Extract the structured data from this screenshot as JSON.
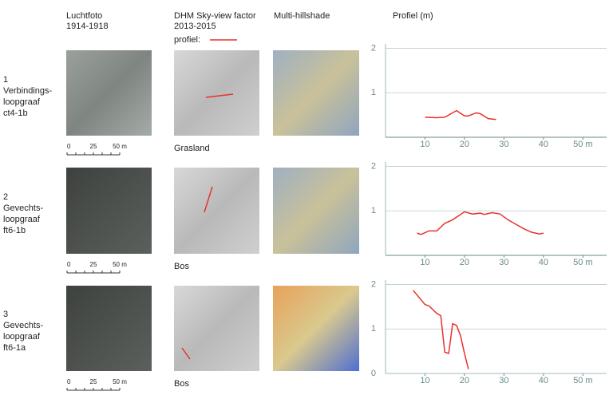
{
  "columns": [
    [
      "Luchtfoto",
      "1914-1918"
    ],
    [
      "DHM Sky-view factor",
      "2013-2015"
    ],
    [
      "Multi-hillshade"
    ],
    [
      "Profiel (m)"
    ]
  ],
  "profile_legend": "profiel:",
  "rows": [
    {
      "label": [
        "1",
        "Verbindings-",
        "loopgraaf",
        "ct4-1b"
      ],
      "landuse": "Grasland",
      "scale": [
        "0",
        "25",
        "50 m"
      ]
    },
    {
      "label": [
        "2",
        "Gevechts-",
        "loopgraaf",
        "ft6-1b"
      ],
      "landuse": "Bos",
      "scale": [
        "0",
        "25",
        "50 m"
      ]
    },
    {
      "label": [
        "3",
        "Gevechts-",
        "loopgraaf",
        "ft6-1a"
      ],
      "landuse": "Bos",
      "scale": [
        "0",
        "25",
        "50 m"
      ]
    }
  ],
  "chart_data": [
    {
      "type": "line",
      "color": "#e8322b",
      "x": [
        10,
        13,
        15,
        18,
        20,
        21,
        23,
        24,
        26,
        28
      ],
      "values": [
        0.45,
        0.44,
        0.45,
        0.6,
        0.48,
        0.48,
        0.55,
        0.53,
        0.42,
        0.4
      ],
      "xlim": [
        0,
        56
      ],
      "ylim": [
        0,
        2.1
      ],
      "xticks": [
        10,
        20,
        30,
        40,
        {
          "value": 50,
          "label": "50 m"
        }
      ],
      "yticks": [
        1,
        2
      ],
      "grid": true
    },
    {
      "type": "line",
      "color": "#e8322b",
      "x": [
        8,
        9,
        11,
        13,
        15,
        17,
        20,
        22,
        24,
        25,
        27,
        29,
        31,
        33,
        35,
        37,
        39,
        40
      ],
      "values": [
        0.5,
        0.47,
        0.55,
        0.55,
        0.72,
        0.8,
        0.98,
        0.93,
        0.95,
        0.92,
        0.96,
        0.93,
        0.8,
        0.7,
        0.6,
        0.52,
        0.48,
        0.5
      ],
      "xlim": [
        0,
        56
      ],
      "ylim": [
        0,
        2.1
      ],
      "xticks": [
        10,
        20,
        30,
        40,
        {
          "value": 50,
          "label": "50 m"
        }
      ],
      "yticks": [
        1,
        2
      ],
      "grid": true
    },
    {
      "type": "line",
      "color": "#e8322b",
      "x": [
        7,
        10,
        11,
        13,
        14,
        15,
        16,
        17,
        18,
        19,
        20,
        21
      ],
      "values": [
        1.87,
        1.55,
        1.52,
        1.35,
        1.3,
        0.48,
        0.45,
        1.12,
        1.08,
        0.85,
        0.45,
        0.1
      ],
      "xlim": [
        0,
        56
      ],
      "ylim": [
        0,
        2.1
      ],
      "xticks": [
        10,
        20,
        30,
        40,
        {
          "value": 50,
          "label": "50 m"
        }
      ],
      "yticks": [
        0,
        1,
        2
      ],
      "grid": true
    }
  ]
}
